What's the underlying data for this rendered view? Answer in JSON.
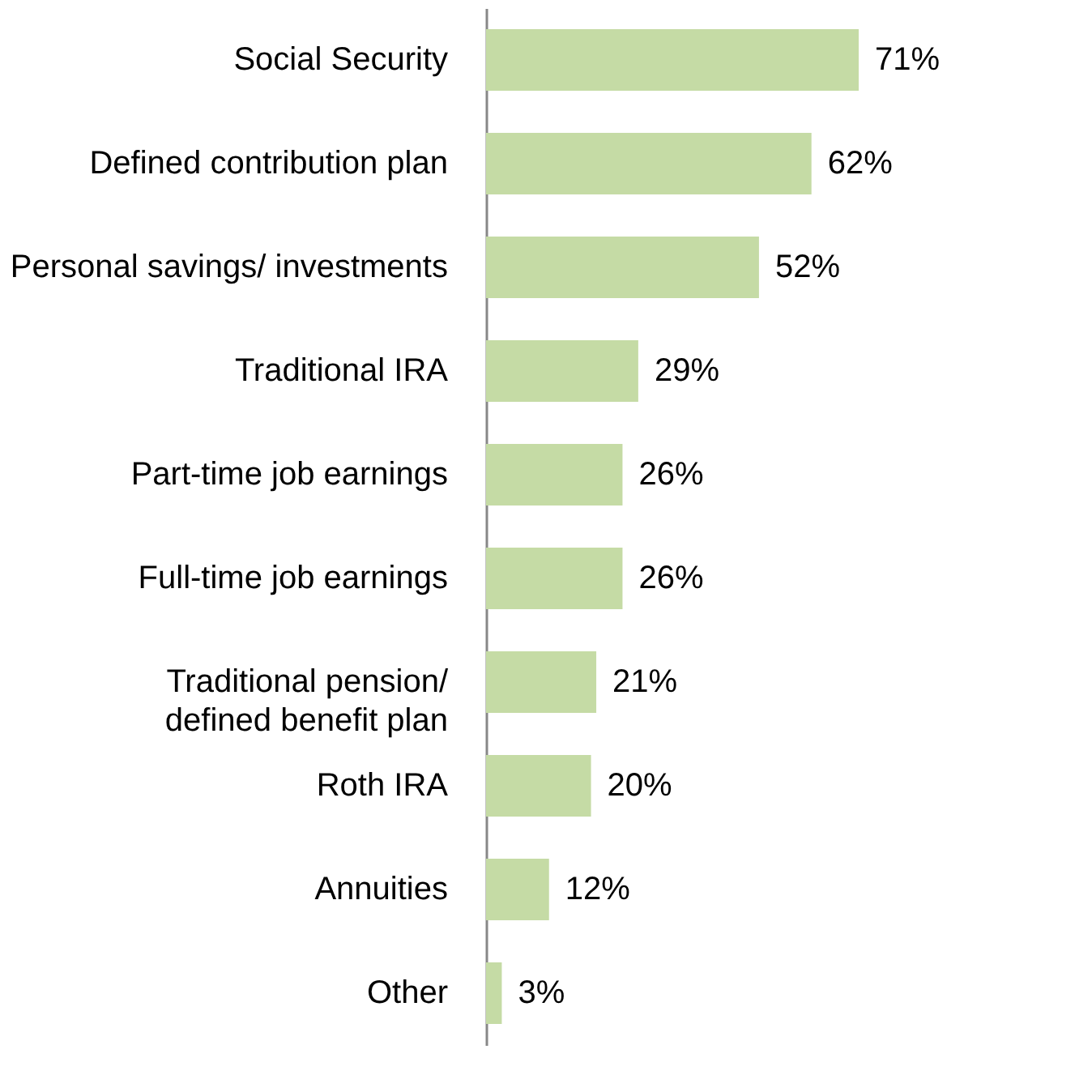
{
  "chart_data": {
    "type": "bar",
    "orientation": "horizontal",
    "categories": [
      "Social Security",
      "Defined contribution plan",
      "Personal savings/ investments",
      "Traditional IRA",
      "Part-time job earnings",
      "Full-time job earnings",
      "Traditional pension/\ndefined benefit plan",
      "Roth IRA",
      "Annuities",
      "Other"
    ],
    "values": [
      71,
      62,
      52,
      29,
      26,
      26,
      21,
      20,
      12,
      3
    ],
    "value_labels": [
      "71%",
      "62%",
      "52%",
      "29%",
      "26%",
      "26%",
      "21%",
      "20%",
      "12%",
      "3%"
    ],
    "color": "#c5dba5"
  }
}
